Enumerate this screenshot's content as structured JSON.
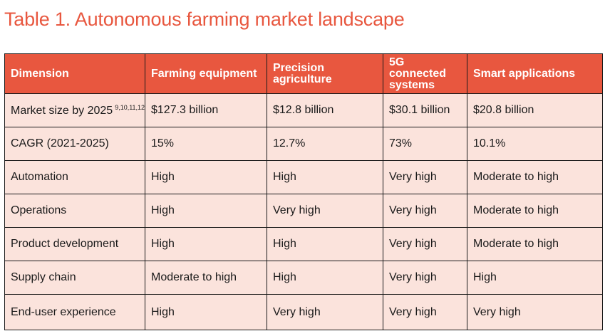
{
  "title": "Table 1. Autonomous farming market landscape",
  "table": {
    "headers": [
      "Dimension",
      "Farming equipment",
      "Precision agriculture",
      "5G connected systems",
      "Smart applications"
    ],
    "rows": [
      {
        "dimension": "Market size by 2025",
        "refs": "9,10,11,12",
        "cells": [
          "$127.3 billion",
          "$12.8 billion",
          "$30.1 billion",
          "$20.8 billion"
        ]
      },
      {
        "dimension": "CAGR (2021-2025)",
        "cells": [
          "15%",
          "12.7%",
          "73%",
          "10.1%"
        ]
      },
      {
        "dimension": "Automation",
        "cells": [
          "High",
          "High",
          "Very high",
          "Moderate to high"
        ]
      },
      {
        "dimension": "Operations",
        "cells": [
          "High",
          "Very high",
          "Very high",
          "Moderate to high"
        ]
      },
      {
        "dimension": "Product development",
        "cells": [
          "High",
          "High",
          "Very high",
          "Moderate to high"
        ]
      },
      {
        "dimension": "Supply chain",
        "cells": [
          "Moderate to high",
          "High",
          "Very high",
          "High"
        ]
      },
      {
        "dimension": "End-user experience",
        "cells": [
          "High",
          "Very high",
          "Very high",
          "Very high"
        ]
      }
    ]
  },
  "colors": {
    "accent": "#e8573f",
    "row_background": "#fbe3dc",
    "border": "#1a1a1a"
  }
}
